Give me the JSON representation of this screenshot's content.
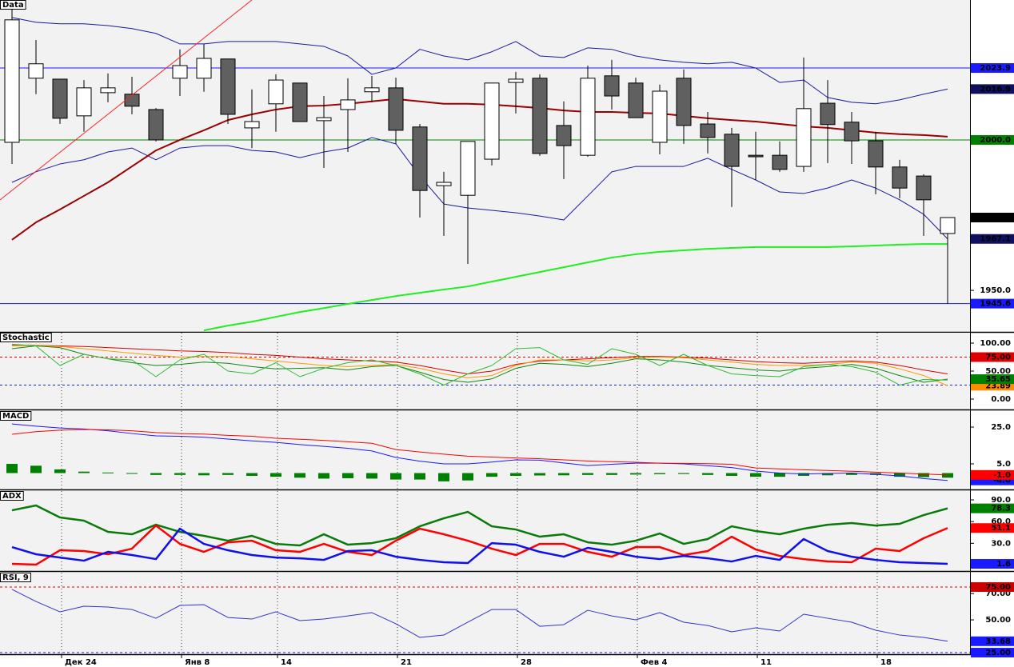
{
  "chart_data": [
    {
      "type": "candlestick",
      "title": "Data",
      "categories": [
        null,
        null,
        "Дек 24",
        null,
        null,
        null,
        null,
        "Янв 8",
        null,
        null,
        null,
        "14",
        null,
        null,
        null,
        null,
        "21",
        null,
        null,
        null,
        null,
        "28",
        null,
        null,
        null,
        null,
        "Фев 4",
        null,
        null,
        null,
        null,
        "11",
        null,
        null,
        null,
        null,
        "18",
        null,
        null,
        null
      ],
      "open": [
        1999.2,
        2020.5,
        2020.2,
        2008.0,
        2015.7,
        2015.2,
        2010.1,
        2020.5,
        2020.5,
        2026.9,
        2004.0,
        2012.0,
        2018.9,
        2006.4,
        2010.1,
        2016.0,
        2017.3,
        2004.3,
        1984.8,
        1981.6,
        1993.6,
        2019.1,
        2020.5,
        2004.8,
        1994.9,
        2021.3,
        2018.9,
        1999.2,
        2020.5,
        2005.3,
        2001.9,
        1994.9,
        1994.9,
        1991.2,
        2012.2,
        2005.9,
        1999.7,
        1991.0,
        1988.0,
        1968.9
      ],
      "high": [
        2043.9,
        2033.2,
        2020.2,
        2019.9,
        2022.1,
        2021.0,
        2010.6,
        2030.1,
        2031.9,
        2026.9,
        2016.8,
        2021.8,
        2018.9,
        2014.6,
        2020.5,
        2021.3,
        2020.7,
        2005.3,
        1989.4,
        1999.5,
        2018.9,
        2022.6,
        2021.8,
        2012.8,
        2024.7,
        2026.6,
        2020.7,
        2018.4,
        2023.4,
        2009.3,
        2004.0,
        2002.7,
        1999.5,
        2027.4,
        2019.9,
        2009.3,
        2002.7,
        1993.4,
        1988.6,
        1974.2
      ],
      "low": [
        1992.0,
        2015.2,
        2005.3,
        2002.7,
        2012.5,
        2008.5,
        1999.5,
        2014.6,
        2016.0,
        2005.3,
        1997.3,
        2002.7,
        2006.1,
        1990.7,
        1996.0,
        2012.5,
        1998.7,
        1974.2,
        1968.1,
        1958.8,
        1991.5,
        2008.8,
        1994.7,
        1987.0,
        1994.4,
        2010.1,
        2007.4,
        1995.2,
        1998.7,
        1995.5,
        1977.7,
        1986.7,
        1989.4,
        1989.4,
        1992.3,
        1992.0,
        1981.9,
        1980.6,
        1968.1,
        1945.6
      ],
      "close": [
        2039.9,
        2025.3,
        2007.2,
        2017.3,
        2017.3,
        2011.2,
        2000.0,
        2024.7,
        2027.1,
        2008.5,
        2006.1,
        2019.9,
        2006.1,
        2007.4,
        2013.3,
        2017.3,
        2003.2,
        1983.2,
        1985.9,
        1999.5,
        2018.9,
        2020.2,
        1995.5,
        1998.1,
        2020.5,
        2014.6,
        2007.4,
        2016.2,
        2004.8,
        2000.8,
        1991.2,
        1994.4,
        1990.2,
        2010.4,
        2005.1,
        1999.7,
        1991.0,
        1984.0,
        1980.1,
        1974.2
      ],
      "up_color": "#ffffff",
      "down_color": "#606060",
      "close_tag_color": "#000000",
      "series": [
        {
          "color": "#1a1aa0",
          "tag_color": "#101060",
          "values": [
            2040.7,
            2039.1,
            2038.6,
            2038.6,
            2038.0,
            2037.0,
            2035.4,
            2031.9,
            2031.9,
            2032.7,
            2032.7,
            2032.7,
            2031.9,
            2031.1,
            2027.9,
            2021.8,
            2023.9,
            2030.1,
            2027.9,
            2026.6,
            2029.3,
            2032.7,
            2027.9,
            2027.4,
            2030.6,
            2030.1,
            2027.9,
            2026.6,
            2025.8,
            2025.3,
            2025.8,
            2023.9,
            2019.1,
            2019.9,
            2014.1,
            2012.5,
            2012.0,
            2013.3,
            2015.2,
            2016.9
          ]
        },
        {
          "color": "#1a1aa0",
          "tag_color": "#101060",
          "values": [
            1985.9,
            1989.4,
            1992.0,
            1993.4,
            1996.0,
            1997.3,
            1993.4,
            1997.3,
            1998.1,
            1998.1,
            1996.5,
            1996.0,
            1994.1,
            1996.0,
            1997.3,
            2000.8,
            1998.7,
            1988.0,
            1978.7,
            1977.4,
            1976.6,
            1975.8,
            1974.7,
            1973.4,
            1981.4,
            1989.4,
            1991.2,
            1991.2,
            1991.2,
            1993.9,
            1990.2,
            1986.7,
            1982.7,
            1982.2,
            1984.0,
            1986.7,
            1984.0,
            1980.1,
            1975.3,
            1967.1
          ]
        },
        {
          "color": "#990000",
          "values": [
            1966.8,
            1972.6,
            1976.9,
            1981.4,
            1985.9,
            1991.2,
            1996.5,
            2000.0,
            2003.2,
            2006.6,
            2008.5,
            2010.1,
            2011.2,
            2011.4,
            2012.0,
            2012.8,
            2013.6,
            2012.8,
            2012.0,
            2012.0,
            2011.7,
            2011.2,
            2010.6,
            2009.8,
            2009.3,
            2009.3,
            2009.0,
            2008.8,
            2008.0,
            2007.2,
            2006.6,
            2006.1,
            2005.3,
            2004.5,
            2004.0,
            2003.2,
            2002.4,
            2001.9,
            2001.6,
            2001.1
          ]
        },
        {
          "color": "#22ee22",
          "values": [
            null,
            null,
            null,
            null,
            null,
            null,
            null,
            null,
            1936.7,
            1938.3,
            1939.6,
            1941.2,
            1942.8,
            1944.1,
            1945.5,
            1946.8,
            1948.1,
            1949.2,
            1950.3,
            1951.3,
            1952.9,
            1954.5,
            1956.1,
            1957.7,
            1959.3,
            1960.9,
            1962.0,
            1962.8,
            1963.3,
            1963.8,
            1964.1,
            1964.4,
            1964.4,
            1964.4,
            1964.4,
            1964.6,
            1964.9,
            1965.2,
            1965.4,
            1965.4
          ]
        }
      ],
      "levels": [
        {
          "value": 2023.9,
          "color": "#1a1aff",
          "tag_color": "#1a1aff"
        },
        {
          "value": 2000,
          "label": "2000.0",
          "color": "#008000",
          "tag_color": "#008000"
        },
        {
          "value": 1945.6,
          "color": "#1a1aff",
          "tag_color": "#1a1aff"
        }
      ],
      "ylim": [
        1936.2,
        2046.5
      ],
      "yticks": [
        {
          "value": 1950,
          "label": "1950.0"
        },
        {
          "value": 2000,
          "label": "2000.0"
        }
      ]
    },
    {
      "type": "line",
      "title": "Stochastic",
      "series": [
        {
          "color": "#dd0000",
          "values": [
            97,
            96,
            95,
            94,
            92,
            90,
            88,
            86,
            85,
            83,
            80,
            78,
            75,
            72,
            70,
            68,
            66,
            60,
            52,
            45,
            50,
            62,
            68,
            70,
            72,
            74,
            76,
            76,
            75,
            73,
            70,
            67,
            65,
            64,
            66,
            68,
            66,
            60,
            52,
            45
          ]
        },
        {
          "color": "#ff9900",
          "tag_color": "#ff8c00",
          "values": [
            95,
            96,
            94,
            90,
            86,
            82,
            78,
            75,
            76,
            76,
            72,
            68,
            64,
            60,
            58,
            60,
            62,
            55,
            45,
            38,
            42,
            60,
            70,
            70,
            68,
            70,
            74,
            75,
            74,
            70,
            66,
            62,
            60,
            60,
            62,
            66,
            64,
            54,
            42,
            23.89
          ]
        },
        {
          "color": "#118811",
          "tag_color": "#008000",
          "values": [
            90,
            95,
            92,
            80,
            72,
            65,
            60,
            62,
            66,
            64,
            58,
            54,
            55,
            56,
            52,
            58,
            60,
            48,
            35,
            30,
            36,
            55,
            64,
            62,
            58,
            64,
            72,
            70,
            66,
            60,
            56,
            52,
            50,
            55,
            58,
            62,
            55,
            42,
            30,
            35.65
          ]
        },
        {
          "color": "#33bb33",
          "values": [
            98,
            95,
            60,
            80,
            72,
            70,
            40,
            70,
            80,
            50,
            45,
            65,
            40,
            55,
            65,
            70,
            60,
            45,
            25,
            45,
            60,
            90,
            92,
            70,
            62,
            90,
            80,
            60,
            80,
            60,
            45,
            42,
            40,
            58,
            62,
            58,
            48,
            25,
            35,
            34
          ]
        }
      ],
      "levels": [
        {
          "value": 75,
          "label": "75.00",
          "color": "#dd0000",
          "tag_color": "#dd0000",
          "dashed": true
        },
        {
          "value": 25,
          "color": "#1a1aff",
          "dashed": true
        }
      ],
      "ylim": [
        -18.6,
        118.6
      ],
      "yticks": [
        {
          "value": 100,
          "label": "100.00"
        },
        {
          "value": 50,
          "label": "50.00"
        },
        {
          "value": 0,
          "label": "0.00"
        }
      ]
    },
    {
      "type": "line",
      "title": "MACD",
      "series": [
        {
          "type": "bar",
          "color": "#008000",
          "values": [
            5.0,
            4.0,
            2.0,
            0.8,
            0.3,
            -0.3,
            -1.0,
            -1.0,
            -1.2,
            -1.0,
            -1.5,
            -2.0,
            -2.5,
            -3.0,
            -2.8,
            -3.0,
            -3.5,
            -3.5,
            -4.5,
            -4.0,
            -2.0,
            -1.5,
            -1.3,
            -1.2,
            -1.0,
            -1.0,
            -0.8,
            -0.6,
            -0.5,
            -1.0,
            -1.5,
            -2.0,
            -2.0,
            -1.5,
            -1.2,
            -1.0,
            -1.0,
            -2.0,
            -2.2,
            -2.5
          ]
        },
        {
          "color": "#1a1aff",
          "tag_color": "#1a1aff",
          "values": [
            26.7,
            25.5,
            24.5,
            24.0,
            23.0,
            21.5,
            20.2,
            20.0,
            19.5,
            18.5,
            17.5,
            16.7,
            15.5,
            14.5,
            13.5,
            12.0,
            8.5,
            6.5,
            5.0,
            5.0,
            6.0,
            7.2,
            7.0,
            5.5,
            4.1,
            4.8,
            5.4,
            5.4,
            5.0,
            4.0,
            3.0,
            1.1,
            0.0,
            -0.5,
            -0.2,
            0.0,
            -0.7,
            -1.5,
            -3.0,
            -4.0
          ],
          "value_labels": [
            null,
            null,
            null,
            null,
            null,
            null,
            null,
            null,
            null,
            null,
            null,
            null,
            null,
            null,
            null,
            null,
            null,
            null,
            null,
            null,
            null,
            null,
            null,
            null,
            null,
            null,
            null,
            null,
            null,
            null,
            null,
            null,
            null,
            null,
            null,
            null,
            null,
            null,
            null,
            "-4.0"
          ]
        },
        {
          "color": "#ff0000",
          "tag_color": "#ff0000",
          "values": [
            21.1,
            22.5,
            23.3,
            23.7,
            23.5,
            23.0,
            22.0,
            21.5,
            21.2,
            20.5,
            20.0,
            18.9,
            18.4,
            17.8,
            17.0,
            16.2,
            12.8,
            11.5,
            10.3,
            9.2,
            8.7,
            8.2,
            7.8,
            7.2,
            6.6,
            6.2,
            5.9,
            5.4,
            5.3,
            5.1,
            4.8,
            2.8,
            2.3,
            1.8,
            1.4,
            1.0,
            0.5,
            0.0,
            -0.5,
            -1.0
          ],
          "value_labels": [
            null,
            null,
            null,
            null,
            null,
            null,
            null,
            null,
            null,
            null,
            null,
            null,
            null,
            null,
            null,
            null,
            null,
            null,
            null,
            null,
            null,
            null,
            null,
            null,
            null,
            null,
            null,
            null,
            null,
            null,
            null,
            null,
            null,
            null,
            null,
            null,
            null,
            null,
            null,
            "-1.0"
          ]
        }
      ],
      "ylim": [
        -8.9,
        33.7
      ],
      "yticks": [
        {
          "value": 25,
          "label": "25.0"
        },
        {
          "value": 5,
          "label": "5.0"
        }
      ]
    },
    {
      "type": "line",
      "title": "ADX",
      "series": [
        {
          "color": "#0a7a0a",
          "tag_color": "#008000",
          "values": [
            75.6,
            82.3,
            65.7,
            61.3,
            45.8,
            42.5,
            55.7,
            45.8,
            40.3,
            33.6,
            40.3,
            29.2,
            27.0,
            42.5,
            28.1,
            30.3,
            37.0,
            53.5,
            64.6,
            73.4,
            53.5,
            49.1,
            39.2,
            42.5,
            31.4,
            28.1,
            33.6,
            43.6,
            29.2,
            35.9,
            53.5,
            46.9,
            42.5,
            50.2,
            55.7,
            58.0,
            54.6,
            56.9,
            69.0,
            78.3
          ]
        },
        {
          "color": "#ff0000",
          "tag_color": "#ff0000",
          "values": [
            1.6,
            0.5,
            20.4,
            19.3,
            14.9,
            22.6,
            54.6,
            29.2,
            18.2,
            31.4,
            33.6,
            20.4,
            18.2,
            29.2,
            18.2,
            13.8,
            33.6,
            50.2,
            42.5,
            33.6,
            22.6,
            13.8,
            29.2,
            29.2,
            18.2,
            11.5,
            24.8,
            24.8,
            13.8,
            19.3,
            39.2,
            21.5,
            12.6,
            8.2,
            4.9,
            3.8,
            22.6,
            19.3,
            37.0,
            51.1
          ]
        },
        {
          "color": "#1010ee",
          "tag_color": "#1a1aff",
          "values": [
            24.8,
            14.9,
            10.4,
            6.0,
            18.2,
            13.8,
            8.2,
            50.2,
            29.2,
            20.4,
            13.8,
            10.4,
            9.3,
            7.1,
            19.3,
            20.4,
            11.5,
            7.1,
            3.8,
            2.7,
            30.3,
            28.1,
            18.2,
            11.5,
            23.7,
            18.2,
            11.5,
            8.2,
            12.6,
            9.3,
            4.9,
            12.6,
            7.1,
            35.9,
            19.3,
            11.5,
            7.1,
            3.8,
            2.7,
            1.6
          ]
        }
      ],
      "ylim": [
        -8.3,
        102.2
      ],
      "yticks": [
        {
          "value": 90,
          "label": "90.0"
        },
        {
          "value": 60,
          "label": "60.0"
        },
        {
          "value": 30,
          "label": "30.0"
        }
      ]
    },
    {
      "type": "line",
      "title": "RSI, 9",
      "series": [
        {
          "color": "#3333cc",
          "tag_color": "#1a1aff",
          "values": [
            73.2,
            64.0,
            56.1,
            60.4,
            59.8,
            57.9,
            51.2,
            61.0,
            61.6,
            51.8,
            50.6,
            56.1,
            49.4,
            50.6,
            53.0,
            55.5,
            47.0,
            36.6,
            38.4,
            48.2,
            57.9,
            57.9,
            45.1,
            46.3,
            57.3,
            53.0,
            50.0,
            55.5,
            48.2,
            45.7,
            40.9,
            43.9,
            41.5,
            54.3,
            51.2,
            48.2,
            42.1,
            38.4,
            36.6,
            33.68
          ]
        }
      ],
      "levels": [
        {
          "value": 75,
          "label": "75.00",
          "color": "#dd0000",
          "tag_color": "#cc0000",
          "dashed": true
        },
        {
          "value": 25,
          "label": "25.00",
          "color": "#1a1aff",
          "tag_color": "#1a1aff",
          "dashed": true
        }
      ],
      "ylim": [
        23.8,
        86.0
      ],
      "yticks": [
        {
          "value": 70,
          "label": "70.00"
        },
        {
          "value": 50,
          "label": "50.00"
        }
      ]
    }
  ]
}
